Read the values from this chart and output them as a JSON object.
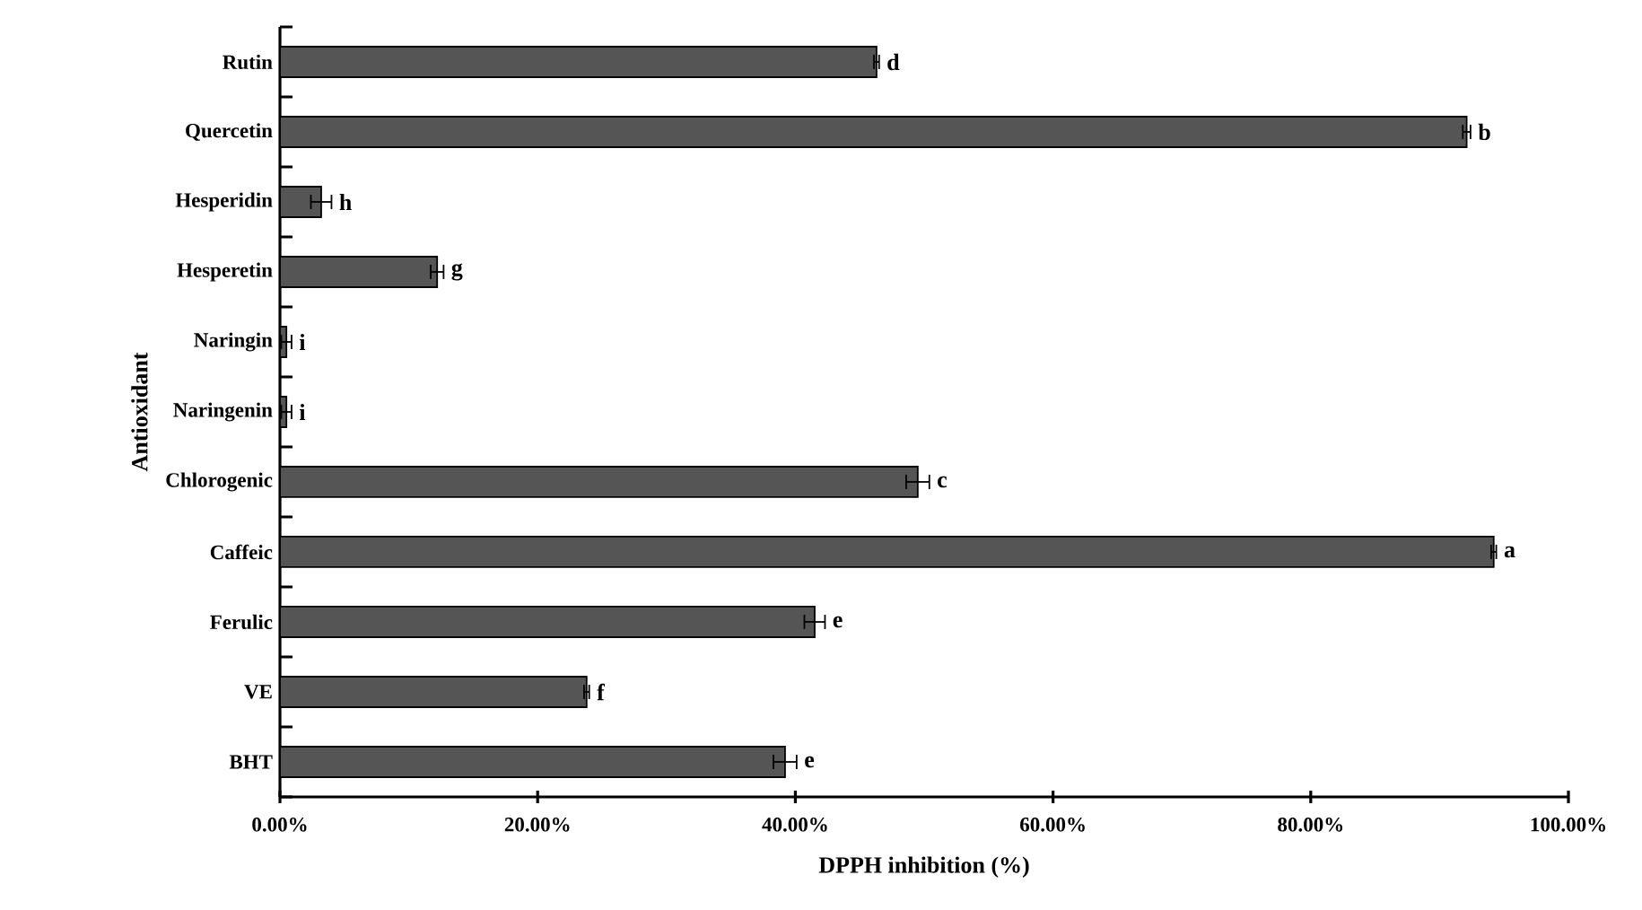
{
  "chart_data": {
    "type": "bar",
    "orientation": "horizontal",
    "xlabel": "DPPH inhibition (%)",
    "ylabel": "Antioxidant",
    "categories": [
      "Rutin",
      "Quercetin",
      "Hesperidin",
      "Hesperetin",
      "Naringin",
      "Naringenin",
      "Chlorogenic",
      "Caffeic",
      "Ferulic",
      "VE",
      "BHT"
    ],
    "values": [
      46.3,
      92.1,
      3.2,
      12.2,
      0.5,
      0.5,
      49.5,
      94.2,
      41.5,
      23.8,
      39.2
    ],
    "errors": [
      0.2,
      0.3,
      0.8,
      0.5,
      0.4,
      0.4,
      0.9,
      0.2,
      0.8,
      0.2,
      0.9
    ],
    "value_labels": [
      "d",
      "b",
      "h",
      "g",
      "i",
      "i",
      "c",
      "a",
      "e",
      "f",
      "e"
    ],
    "color": "#555555",
    "xlim": [
      0,
      100
    ],
    "xticks": [
      {
        "value": 0,
        "label": "0.00%"
      },
      {
        "value": 20,
        "label": "20.00%"
      },
      {
        "value": 40,
        "label": "40.00%"
      },
      {
        "value": 60,
        "label": "60.00%"
      },
      {
        "value": 80,
        "label": "80.00%"
      },
      {
        "value": 100,
        "label": "100.00%"
      }
    ],
    "grid": false
  }
}
